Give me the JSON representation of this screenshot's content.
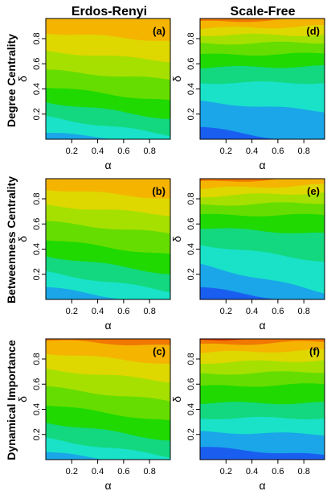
{
  "figure": {
    "column_titles": [
      "Erdos-Renyi",
      "Scale-Free"
    ],
    "row_titles": [
      "Degree Centrality",
      "Betweenness Centrality",
      "Dynamical Importance"
    ],
    "palette": [
      "#1a5ef0",
      "#1aa6e8",
      "#19e2c9",
      "#13d87f",
      "#1fd900",
      "#66dd00",
      "#a6e000",
      "#dfd700",
      "#f5b400",
      "#f07800",
      "#e23c00",
      "#e00000"
    ]
  },
  "chart_data": [
    {
      "type": "heatmap",
      "panel_label": "(a)",
      "title": "Erdos-Renyi",
      "row_title": "Degree Centrality",
      "xlabel": "α",
      "ylabel": "δ",
      "xlim": [
        0,
        0.96
      ],
      "ylim": [
        0,
        0.96
      ],
      "xticks": [
        0.2,
        0.4,
        0.6,
        0.8
      ],
      "yticks": [
        0.2,
        0.4,
        0.6,
        0.8
      ],
      "contour_levels": [
        {
          "level": 2,
          "y_at_x_min": 0.05,
          "y_at_x_max": -0.02
        },
        {
          "level": 3,
          "y_at_x_min": 0.18,
          "y_at_x_max": 0.03
        },
        {
          "level": 4,
          "y_at_x_min": 0.3,
          "y_at_x_max": 0.16
        },
        {
          "level": 5,
          "y_at_x_min": 0.42,
          "y_at_x_max": 0.3
        },
        {
          "level": 6,
          "y_at_x_min": 0.55,
          "y_at_x_max": 0.47
        },
        {
          "level": 7,
          "y_at_x_min": 0.7,
          "y_at_x_max": 0.62
        },
        {
          "level": 8,
          "y_at_x_min": 0.85,
          "y_at_x_max": 0.78
        },
        {
          "level": 9,
          "y_at_x_min": 0.97,
          "y_at_x_max": 1.2
        }
      ]
    },
    {
      "type": "heatmap",
      "panel_label": "(d)",
      "title": "Scale-Free",
      "row_title": "Degree Centrality",
      "xlabel": "α",
      "ylabel": "δ",
      "xlim": [
        0,
        0.96
      ],
      "ylim": [
        0,
        0.96
      ],
      "xticks": [
        0.2,
        0.4,
        0.6,
        0.8
      ],
      "yticks": [
        0.2,
        0.4,
        0.6,
        0.8
      ],
      "contour_levels": [
        {
          "level": 1,
          "y_at_x_min": 0.1,
          "y_at_x_max": -0.05
        },
        {
          "level": 2,
          "y_at_x_min": 0.3,
          "y_at_x_max": 0.22
        },
        {
          "level": 3,
          "y_at_x_min": 0.45,
          "y_at_x_max": 0.45
        },
        {
          "level": 4,
          "y_at_x_min": 0.57,
          "y_at_x_max": 0.58
        },
        {
          "level": 5,
          "y_at_x_min": 0.67,
          "y_at_x_max": 0.68
        },
        {
          "level": 6,
          "y_at_x_min": 0.76,
          "y_at_x_max": 0.77
        },
        {
          "level": 7,
          "y_at_x_min": 0.83,
          "y_at_x_max": 0.83
        },
        {
          "level": 8,
          "y_at_x_min": 0.88,
          "y_at_x_max": 0.9
        },
        {
          "level": 9,
          "y_at_x_min": 0.93,
          "y_at_x_max": 0.96
        },
        {
          "level": 10,
          "y_at_x_min": 0.96,
          "y_at_x_max": 1.2
        }
      ]
    },
    {
      "type": "heatmap",
      "panel_label": "(b)",
      "title": "",
      "row_title": "Betweenness Centrality",
      "xlabel": "α",
      "ylabel": "δ",
      "xlim": [
        0,
        0.96
      ],
      "ylim": [
        0,
        0.96
      ],
      "xticks": [
        0.2,
        0.4,
        0.6,
        0.8
      ],
      "yticks": [
        0.2,
        0.4,
        0.6,
        0.8
      ],
      "contour_levels": [
        {
          "level": 2,
          "y_at_x_min": 0.1,
          "y_at_x_max": -0.05
        },
        {
          "level": 3,
          "y_at_x_min": 0.22,
          "y_at_x_max": 0.06
        },
        {
          "level": 4,
          "y_at_x_min": 0.35,
          "y_at_x_max": 0.2
        },
        {
          "level": 5,
          "y_at_x_min": 0.48,
          "y_at_x_max": 0.35
        },
        {
          "level": 6,
          "y_at_x_min": 0.62,
          "y_at_x_max": 0.52
        },
        {
          "level": 7,
          "y_at_x_min": 0.75,
          "y_at_x_max": 0.67
        },
        {
          "level": 8,
          "y_at_x_min": 0.88,
          "y_at_x_max": 0.8
        },
        {
          "level": 9,
          "y_at_x_min": 0.97,
          "y_at_x_max": 1.2
        }
      ]
    },
    {
      "type": "heatmap",
      "panel_label": "(e)",
      "title": "",
      "row_title": "Betweenness Centrality",
      "xlabel": "α",
      "ylabel": "δ",
      "xlim": [
        0,
        0.96
      ],
      "ylim": [
        0,
        0.96
      ],
      "xticks": [
        0.2,
        0.4,
        0.6,
        0.8
      ],
      "yticks": [
        0.2,
        0.4,
        0.6,
        0.8
      ],
      "contour_levels": [
        {
          "level": 1,
          "y_at_x_min": 0.1,
          "y_at_x_max": -0.05
        },
        {
          "level": 2,
          "y_at_x_min": 0.28,
          "y_at_x_max": 0.05
        },
        {
          "level": 3,
          "y_at_x_min": 0.44,
          "y_at_x_max": 0.3
        },
        {
          "level": 4,
          "y_at_x_min": 0.57,
          "y_at_x_max": 0.52
        },
        {
          "level": 5,
          "y_at_x_min": 0.67,
          "y_at_x_max": 0.67
        },
        {
          "level": 6,
          "y_at_x_min": 0.75,
          "y_at_x_max": 0.77
        },
        {
          "level": 7,
          "y_at_x_min": 0.82,
          "y_at_x_max": 0.85
        },
        {
          "level": 8,
          "y_at_x_min": 0.88,
          "y_at_x_max": 0.91
        },
        {
          "level": 9,
          "y_at_x_min": 0.93,
          "y_at_x_max": 0.97
        },
        {
          "level": 10,
          "y_at_x_min": 0.97,
          "y_at_x_max": 1.2
        }
      ]
    },
    {
      "type": "heatmap",
      "panel_label": "(c)",
      "title": "",
      "row_title": "Dynamical Importance",
      "xlabel": "α",
      "ylabel": "δ",
      "xlim": [
        0,
        0.96
      ],
      "ylim": [
        0,
        0.96
      ],
      "xticks": [
        0.2,
        0.4,
        0.6,
        0.8
      ],
      "yticks": [
        0.2,
        0.4,
        0.6,
        0.8
      ],
      "contour_levels": [
        {
          "level": 2,
          "y_at_x_min": 0.06,
          "y_at_x_max": -0.05
        },
        {
          "level": 3,
          "y_at_x_min": 0.17,
          "y_at_x_max": 0.02
        },
        {
          "level": 4,
          "y_at_x_min": 0.3,
          "y_at_x_max": 0.15
        },
        {
          "level": 5,
          "y_at_x_min": 0.44,
          "y_at_x_max": 0.3
        },
        {
          "level": 6,
          "y_at_x_min": 0.58,
          "y_at_x_max": 0.46
        },
        {
          "level": 7,
          "y_at_x_min": 0.72,
          "y_at_x_max": 0.62
        },
        {
          "level": 8,
          "y_at_x_min": 0.85,
          "y_at_x_max": 0.76
        },
        {
          "level": 9,
          "y_at_x_min": 0.95,
          "y_at_x_max": 0.9
        },
        {
          "level": 10,
          "y_at_x_min": 0.98,
          "y_at_x_max": 1.2
        }
      ]
    },
    {
      "type": "heatmap",
      "panel_label": "(f)",
      "title": "",
      "row_title": "Dynamical Importance",
      "xlabel": "α",
      "ylabel": "δ",
      "xlim": [
        0,
        0.96
      ],
      "ylim": [
        0,
        0.96
      ],
      "xticks": [
        0.2,
        0.4,
        0.6,
        0.8
      ],
      "yticks": [
        0.2,
        0.4,
        0.6,
        0.8
      ],
      "contour_levels": [
        {
          "level": 1,
          "y_at_x_min": 0.1,
          "y_at_x_max": 0.03
        },
        {
          "level": 2,
          "y_at_x_min": 0.22,
          "y_at_x_max": 0.2
        },
        {
          "level": 3,
          "y_at_x_min": 0.33,
          "y_at_x_max": 0.33
        },
        {
          "level": 4,
          "y_at_x_min": 0.45,
          "y_at_x_max": 0.45
        },
        {
          "level": 5,
          "y_at_x_min": 0.58,
          "y_at_x_max": 0.6
        },
        {
          "level": 6,
          "y_at_x_min": 0.68,
          "y_at_x_max": 0.7
        },
        {
          "level": 7,
          "y_at_x_min": 0.77,
          "y_at_x_max": 0.79
        },
        {
          "level": 8,
          "y_at_x_min": 0.85,
          "y_at_x_max": 0.87
        },
        {
          "level": 9,
          "y_at_x_min": 0.91,
          "y_at_x_max": 0.94
        },
        {
          "level": 10,
          "y_at_x_min": 0.95,
          "y_at_x_max": 0.98
        },
        {
          "level": 11,
          "y_at_x_min": 0.985,
          "y_at_x_max": 1.2
        }
      ]
    }
  ]
}
